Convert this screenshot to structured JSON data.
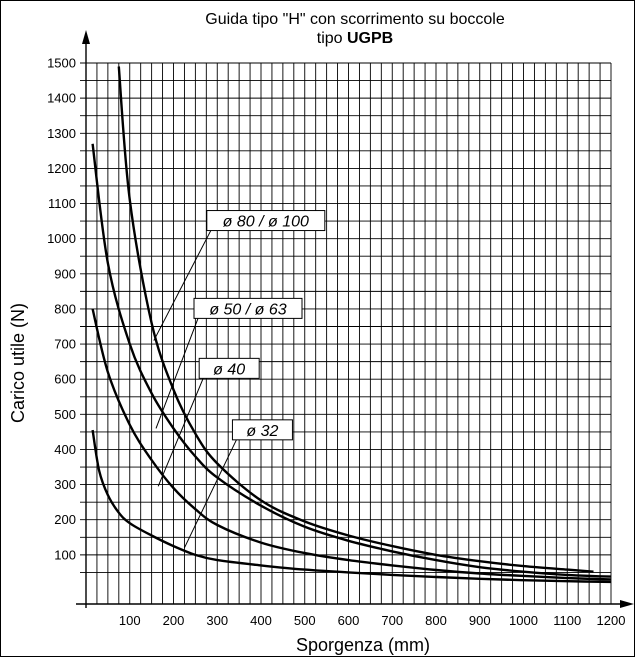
{
  "chart_data": {
    "type": "line",
    "title_line1": "Guida tipo \"H\" con scorrimento su boccole",
    "title_line2_prefix": "tipo ",
    "title_line2_bold": "UGPB",
    "xlabel": "Sporgenza (mm)",
    "ylabel": "Carico utile (N)",
    "xlim": [
      0,
      1200
    ],
    "ylim": [
      0,
      1500
    ],
    "grid": true,
    "x_ticks": [
      100,
      200,
      300,
      400,
      500,
      600,
      700,
      800,
      900,
      1000,
      1100,
      1200
    ],
    "y_ticks": [
      100,
      200,
      300,
      400,
      500,
      600,
      700,
      800,
      900,
      1000,
      1100,
      1200,
      1300,
      1400,
      1500
    ],
    "series": [
      {
        "name": "ø 80 / ø 100",
        "points": [
          [
            75,
            1490
          ],
          [
            100,
            1110
          ],
          [
            150,
            760
          ],
          [
            200,
            570
          ],
          [
            250,
            445
          ],
          [
            300,
            360
          ],
          [
            400,
            255
          ],
          [
            500,
            195
          ],
          [
            600,
            155
          ],
          [
            700,
            125
          ],
          [
            800,
            100
          ],
          [
            900,
            82
          ],
          [
            1000,
            68
          ],
          [
            1100,
            58
          ],
          [
            1160,
            52
          ]
        ]
      },
      {
        "name": "ø 50 / ø 63",
        "points": [
          [
            15,
            1270
          ],
          [
            50,
            930
          ],
          [
            100,
            700
          ],
          [
            150,
            560
          ],
          [
            200,
            460
          ],
          [
            250,
            380
          ],
          [
            300,
            320
          ],
          [
            400,
            240
          ],
          [
            500,
            180
          ],
          [
            600,
            140
          ],
          [
            700,
            110
          ],
          [
            800,
            85
          ],
          [
            900,
            65
          ],
          [
            1000,
            52
          ],
          [
            1100,
            43
          ],
          [
            1200,
            38
          ]
        ]
      },
      {
        "name": "ø 40",
        "points": [
          [
            15,
            800
          ],
          [
            50,
            620
          ],
          [
            100,
            470
          ],
          [
            150,
            370
          ],
          [
            200,
            290
          ],
          [
            250,
            230
          ],
          [
            300,
            185
          ],
          [
            400,
            135
          ],
          [
            500,
            105
          ],
          [
            600,
            85
          ],
          [
            700,
            70
          ],
          [
            800,
            57
          ],
          [
            900,
            47
          ],
          [
            1000,
            40
          ],
          [
            1100,
            34
          ],
          [
            1200,
            30
          ]
        ]
      },
      {
        "name": "ø 32",
        "points": [
          [
            15,
            455
          ],
          [
            30,
            340
          ],
          [
            50,
            270
          ],
          [
            75,
            220
          ],
          [
            100,
            190
          ],
          [
            150,
            155
          ],
          [
            200,
            125
          ],
          [
            250,
            100
          ],
          [
            300,
            85
          ],
          [
            400,
            70
          ],
          [
            500,
            58
          ],
          [
            600,
            50
          ],
          [
            700,
            43
          ],
          [
            800,
            37
          ],
          [
            900,
            32
          ],
          [
            1000,
            28
          ],
          [
            1100,
            25
          ],
          [
            1200,
            23
          ]
        ]
      }
    ],
    "labels": [
      {
        "series": 0,
        "text": "ø 80 / ø 100",
        "anchor": [
          155,
          710
        ]
      },
      {
        "series": 1,
        "text": "ø 50 / ø 63",
        "anchor": [
          160,
          460
        ]
      },
      {
        "series": 2,
        "text": "ø 40",
        "anchor": [
          165,
          295
        ]
      },
      {
        "series": 3,
        "text": "ø 32",
        "anchor": [
          225,
          120
        ]
      }
    ]
  }
}
